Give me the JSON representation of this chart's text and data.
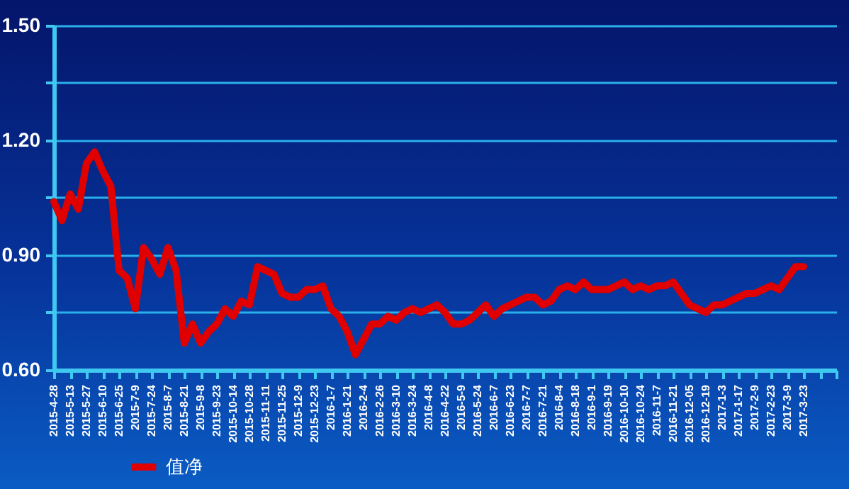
{
  "chart_data": {
    "type": "line",
    "categories": [
      "2015-4-28",
      null,
      "2015-5-13",
      null,
      "2015-5-27",
      null,
      "2015-6-10",
      null,
      "2015-6-25",
      null,
      "2015-7-9",
      null,
      "2015-7-24",
      null,
      "2015-8-7",
      null,
      "2015-8-21",
      null,
      "2015-9-8",
      null,
      "2015-9-23",
      null,
      "2015-10-14",
      null,
      "2015-10-28",
      null,
      "2015-11-11",
      null,
      "2015-11-25",
      null,
      "2015-12-9",
      null,
      "2015-12-23",
      null,
      "2016-1-7",
      null,
      "2016-1-21",
      null,
      "2016-2-4",
      null,
      "2016-2-26",
      null,
      "2016-3-10",
      null,
      "2016-3-24",
      null,
      "2016-4-8",
      null,
      "2016-4-22",
      null,
      "2016-5-9",
      null,
      "2016-5-24",
      null,
      "2016-6-7",
      null,
      "2016-6-23",
      null,
      "2016-7-7",
      null,
      "2016-7-21",
      null,
      "2016-8-4",
      null,
      "2016-8-18",
      null,
      "2016-9-1",
      null,
      "2016-9-19",
      null,
      "2016-10-10",
      null,
      "2016-10-24",
      null,
      "2016-11-7",
      null,
      "2016-11-21",
      null,
      "2016-12-05",
      null,
      "2016-12-19",
      null,
      "2017-1-3",
      null,
      "2017-1-17",
      null,
      "2017-2-9",
      null,
      "2017-2-23",
      null,
      "2017-3-9",
      null,
      "2017-3-23",
      null,
      null,
      null,
      null
    ],
    "series": [
      {
        "name": "值净",
        "color": "#e00000",
        "values": [
          1.04,
          0.99,
          1.06,
          1.02,
          1.14,
          1.17,
          1.12,
          1.08,
          0.86,
          0.84,
          0.76,
          0.92,
          0.89,
          0.85,
          0.92,
          0.86,
          0.67,
          0.72,
          0.67,
          0.7,
          0.72,
          0.76,
          0.74,
          0.78,
          0.77,
          0.87,
          0.86,
          0.85,
          0.8,
          0.79,
          0.79,
          0.81,
          0.81,
          0.82,
          0.76,
          0.74,
          0.7,
          0.64,
          0.68,
          0.72,
          0.72,
          0.74,
          0.73,
          0.75,
          0.76,
          0.75,
          0.76,
          0.77,
          0.75,
          0.72,
          0.72,
          0.73,
          0.75,
          0.77,
          0.74,
          0.76,
          0.77,
          0.78,
          0.79,
          0.79,
          0.77,
          0.78,
          0.81,
          0.82,
          0.81,
          0.83,
          0.81,
          0.81,
          0.81,
          0.82,
          0.83,
          0.81,
          0.82,
          0.81,
          0.82,
          0.82,
          0.83,
          0.8,
          0.77,
          0.76,
          0.75,
          0.77,
          0.77,
          0.78,
          0.79,
          0.8,
          0.8,
          0.81,
          0.82,
          0.81,
          0.84,
          0.87,
          0.87,
          null,
          null,
          null,
          null
        ]
      }
    ],
    "ylim": [
      0.6,
      1.5
    ],
    "yticks": [
      {
        "value": 0.6,
        "label": "0.60"
      },
      {
        "value": 0.75,
        "label": null
      },
      {
        "value": 0.9,
        "label": "0.90"
      },
      {
        "value": 1.05,
        "label": null
      },
      {
        "value": 1.2,
        "label": "1.20"
      },
      {
        "value": 1.35,
        "label": null
      },
      {
        "value": 1.5,
        "label": "1.50"
      }
    ],
    "grid": "y",
    "legend": "bottom left",
    "line_style": "solid",
    "marker": "none"
  }
}
